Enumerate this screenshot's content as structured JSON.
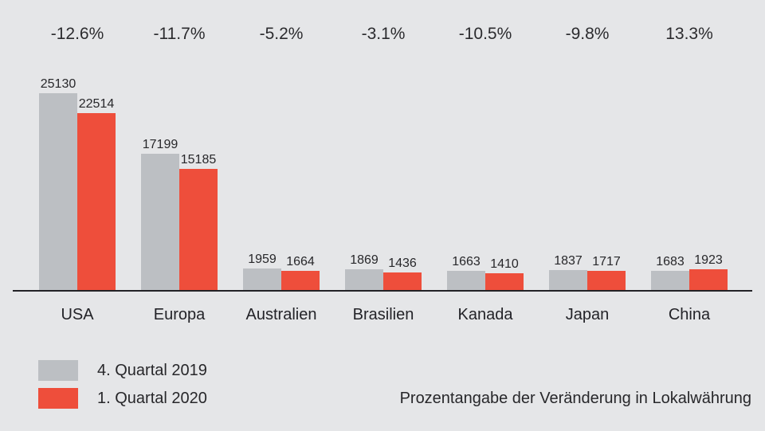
{
  "chart_data": {
    "type": "bar",
    "categories": [
      "USA",
      "Europa",
      "Australien",
      "Brasilien",
      "Kanada",
      "Japan",
      "China"
    ],
    "series": [
      {
        "name": "4. Quartal 2019",
        "color": "#bcbfc3",
        "values": [
          25130,
          17199,
          1959,
          1869,
          1663,
          1837,
          1683
        ]
      },
      {
        "name": "1. Quartal 2020",
        "color": "#ee4e3b",
        "values": [
          22514,
          15185,
          1664,
          1436,
          1410,
          1717,
          1923
        ]
      }
    ],
    "change_labels": [
      "-12.6%",
      "-11.7%",
      "-5.2%",
      "-3.1%",
      "-10.5%",
      "-9.8%",
      "13.3%"
    ],
    "value_labels_shown": true,
    "ylim": [
      0,
      26000
    ],
    "grid": false,
    "axis_line": true,
    "legend_position": "bottom-left"
  },
  "legend": {
    "items": [
      {
        "label": "4. Quartal 2019",
        "color": "#bcbfc3"
      },
      {
        "label": "1. Quartal 2020",
        "color": "#ee4e3b"
      }
    ]
  },
  "footnote": "Prozentangabe der Veränderung in Lokalwährung",
  "colors": {
    "background": "#e5e6e8",
    "bar_q4_2019": "#bcbfc3",
    "bar_q1_2020": "#ee4e3b",
    "text": "#2b2b2e",
    "axis_line": "#222226"
  }
}
